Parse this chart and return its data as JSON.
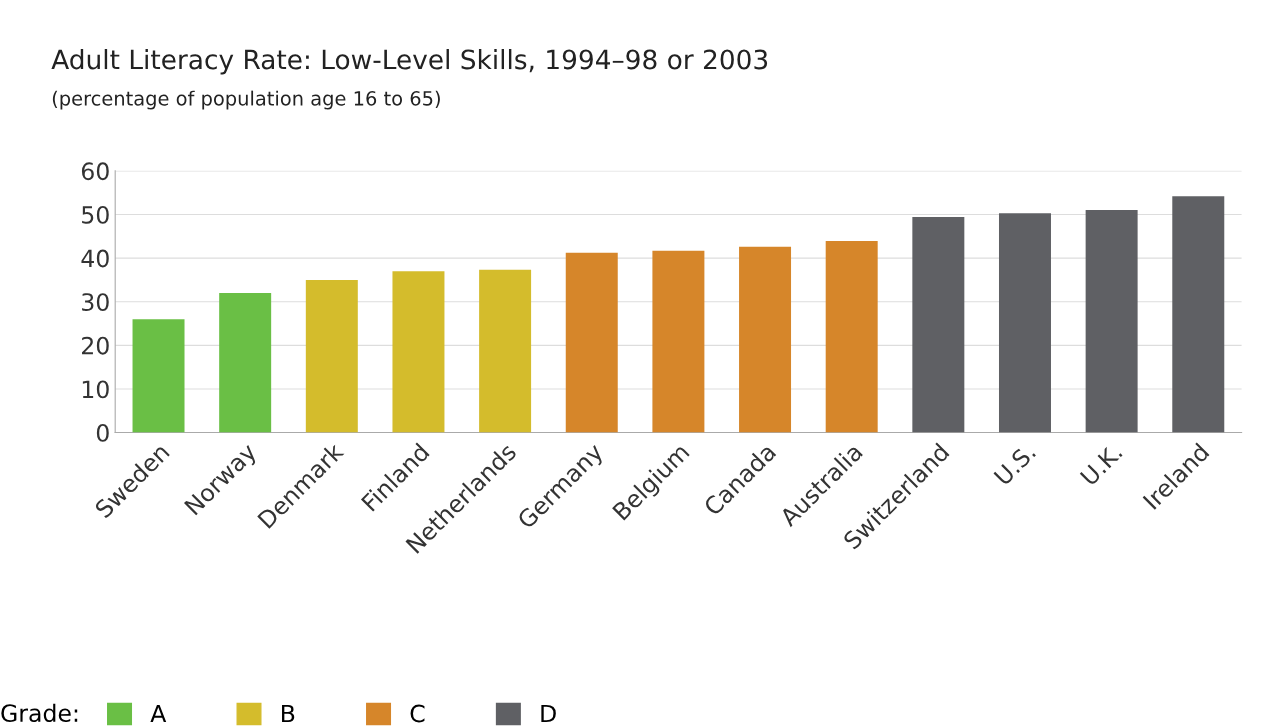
{
  "chart_data": {
    "type": "bar",
    "title": "Adult Literacy Rate: Low-Level Skills, 1994–98 or 2003",
    "subtitle": "(percentage of population age 16 to 65)",
    "categories": [
      "Sweden",
      "Norway",
      "Denmark",
      "Finland",
      "Netherlands",
      "Germany",
      "Belgium",
      "Canada",
      "Australia",
      "Switzerland",
      "U.S.",
      "U.K.",
      "Ireland"
    ],
    "series": [
      {
        "name": "A",
        "color": "#6abf45",
        "values": [
          26,
          32,
          null,
          null,
          null,
          null,
          null,
          null,
          null,
          null,
          null,
          null,
          null
        ]
      },
      {
        "name": "B",
        "color": "#d4bc2c",
        "values": [
          null,
          null,
          35,
          37,
          37.3,
          null,
          null,
          null,
          null,
          null,
          null,
          null,
          null
        ]
      },
      {
        "name": "C",
        "color": "#d6862a",
        "values": [
          null,
          null,
          null,
          null,
          null,
          41.2,
          41.7,
          42.6,
          43.9,
          null,
          null,
          null,
          null
        ]
      },
      {
        "name": "D",
        "color": "#5f6064",
        "values": [
          null,
          null,
          null,
          null,
          null,
          null,
          null,
          null,
          null,
          49.4,
          50.3,
          51,
          54.2
        ]
      }
    ],
    "legend_title": "Grade:",
    "legend": "bottom",
    "ylim": [
      0,
      60
    ],
    "yticks": [
      0,
      10,
      20,
      30,
      40,
      50,
      60
    ],
    "grid": "y"
  }
}
